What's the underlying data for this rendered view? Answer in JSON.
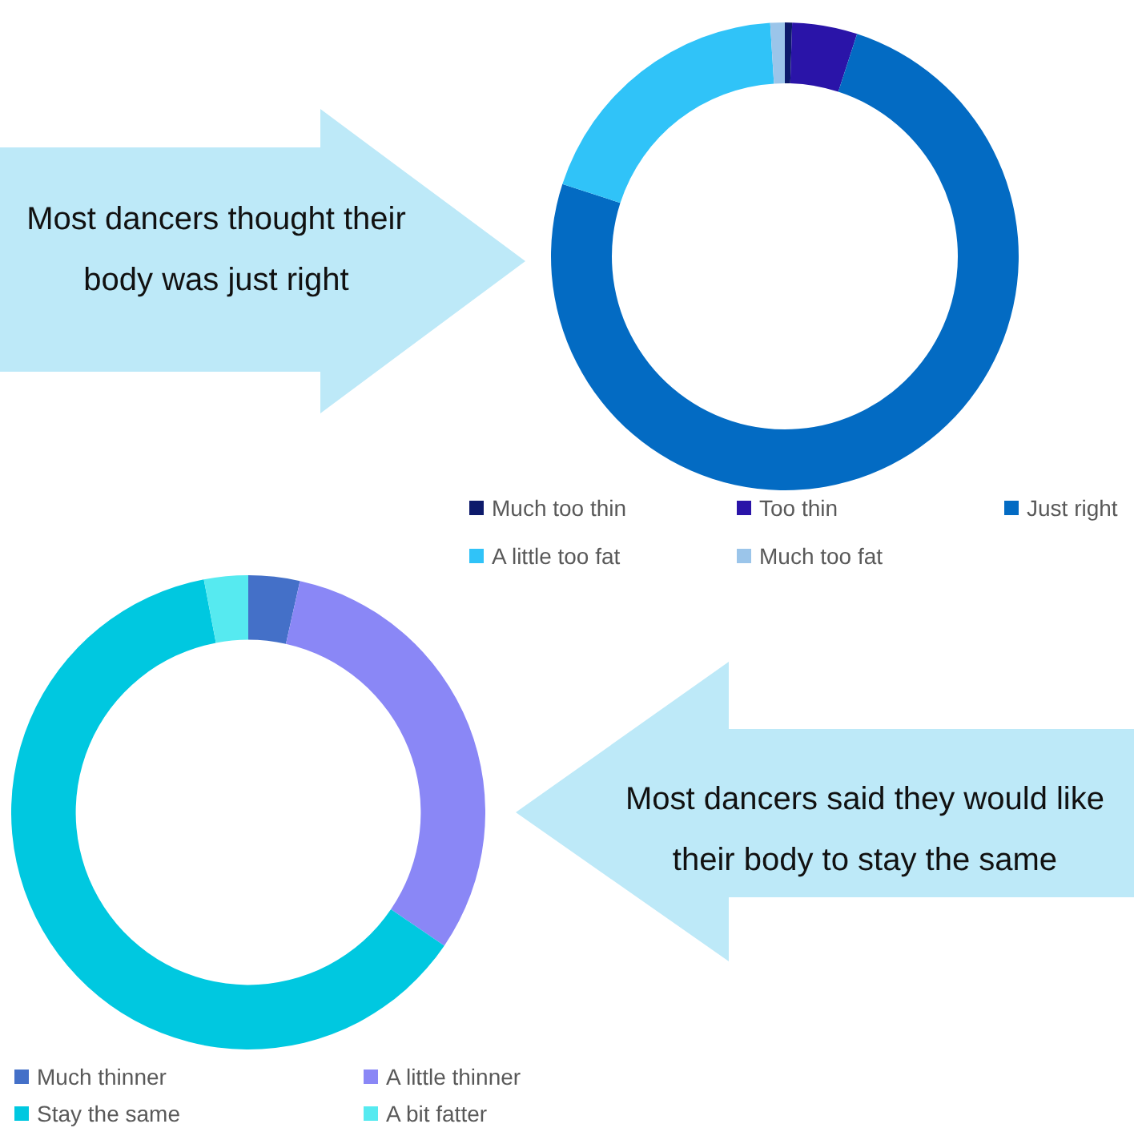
{
  "chart_data": [
    {
      "type": "donut",
      "categories": [
        "Much too thin",
        "Too thin",
        "Just right",
        "A little too fat",
        "Much too fat"
      ],
      "values": [
        0.5,
        4.5,
        75,
        19,
        1
      ],
      "colors": [
        "#0d1a6b",
        "#2a14a8",
        "#036bc3",
        "#30c3f8",
        "#9bc5ea"
      ],
      "legend": "bottom",
      "annotations": [
        "Most dancers thought their body was just right"
      ]
    },
    {
      "type": "donut",
      "categories": [
        "Much thinner",
        "A little thinner",
        "Stay the same",
        "A bit fatter"
      ],
      "values": [
        3.5,
        31,
        62.5,
        3
      ],
      "colors": [
        "#4470c8",
        "#8a87f6",
        "#00c8e0",
        "#56eaf0"
      ],
      "legend": "bottom",
      "annotations": [
        "Most dancers said they would like their body to stay the same"
      ]
    }
  ]
}
